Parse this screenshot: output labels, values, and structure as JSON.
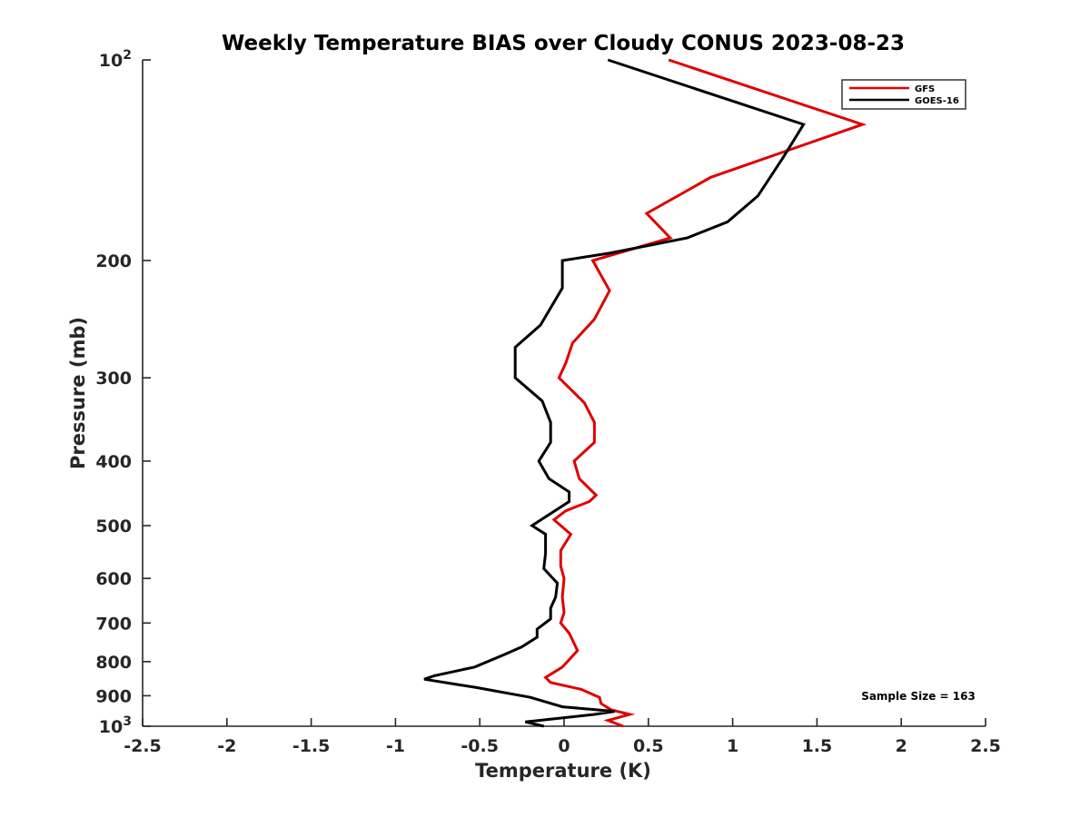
{
  "chart_data": {
    "type": "line",
    "title": "Weekly Temperature BIAS over Cloudy CONUS 2023-08-23",
    "xlabel": "Temperature (K)",
    "ylabel": "Pressure (mb)",
    "xlim": [
      -2.5,
      2.5
    ],
    "ylim": [
      100,
      1000
    ],
    "y_scale": "log",
    "y_reversed": true,
    "x_ticks": [
      "-2.5",
      "-2",
      "-1.5",
      "-1",
      "-0.5",
      "0",
      "0.5",
      "1",
      "1.5",
      "2",
      "2.5"
    ],
    "x_tick_values": [
      -2.5,
      -2,
      -1.5,
      -1,
      -0.5,
      0,
      0.5,
      1,
      1.5,
      2,
      2.5
    ],
    "y_ticks": [
      {
        "value": 100,
        "base": "10",
        "exp": "2"
      },
      {
        "value": 200,
        "label": "200"
      },
      {
        "value": 300,
        "label": "300"
      },
      {
        "value": 400,
        "label": "400"
      },
      {
        "value": 500,
        "label": "500"
      },
      {
        "value": 600,
        "label": "600"
      },
      {
        "value": 700,
        "label": "700"
      },
      {
        "value": 800,
        "label": "800"
      },
      {
        "value": 900,
        "label": "900"
      },
      {
        "value": 1000,
        "base": "10",
        "exp": "3"
      }
    ],
    "grid": false,
    "legend_position": "top-right",
    "annotation": "Sample Size = 163",
    "series": [
      {
        "name": "GFS",
        "color": "#e00000",
        "points": [
          [
            0.62,
            100
          ],
          [
            1.77,
            125
          ],
          [
            0.87,
            150
          ],
          [
            0.49,
            170
          ],
          [
            0.63,
            185
          ],
          [
            0.17,
            200
          ],
          [
            0.27,
            222
          ],
          [
            0.18,
            245
          ],
          [
            0.05,
            266
          ],
          [
            0.01,
            285
          ],
          [
            -0.03,
            300
          ],
          [
            0.12,
            327
          ],
          [
            0.18,
            350
          ],
          [
            0.18,
            375
          ],
          [
            0.06,
            400
          ],
          [
            0.09,
            425
          ],
          [
            0.19,
            450
          ],
          [
            0.15,
            460
          ],
          [
            0.01,
            475
          ],
          [
            -0.06,
            490
          ],
          [
            0.04,
            515
          ],
          [
            -0.02,
            545
          ],
          [
            -0.02,
            575
          ],
          [
            0.0,
            600
          ],
          [
            -0.01,
            640
          ],
          [
            0.0,
            675
          ],
          [
            -0.02,
            700
          ],
          [
            0.03,
            725
          ],
          [
            0.08,
            770
          ],
          [
            -0.01,
            815
          ],
          [
            -0.11,
            845
          ],
          [
            -0.08,
            860
          ],
          [
            0.1,
            880
          ],
          [
            0.21,
            905
          ],
          [
            0.22,
            925
          ],
          [
            0.28,
            945
          ],
          [
            0.39,
            960
          ],
          [
            0.26,
            980
          ],
          [
            0.35,
            1000
          ]
        ]
      },
      {
        "name": "GOES-16",
        "color": "#000000",
        "points": [
          [
            0.26,
            100
          ],
          [
            1.42,
            125
          ],
          [
            1.3,
            140
          ],
          [
            1.15,
            160
          ],
          [
            0.97,
            175
          ],
          [
            0.73,
            185
          ],
          [
            0.27,
            195
          ],
          [
            -0.01,
            200
          ],
          [
            -0.01,
            220
          ],
          [
            -0.14,
            250
          ],
          [
            -0.29,
            270
          ],
          [
            -0.29,
            300
          ],
          [
            -0.13,
            325
          ],
          [
            -0.08,
            350
          ],
          [
            -0.08,
            375
          ],
          [
            -0.15,
            400
          ],
          [
            -0.09,
            425
          ],
          [
            0.03,
            445
          ],
          [
            0.03,
            460
          ],
          [
            -0.19,
            500
          ],
          [
            -0.11,
            515
          ],
          [
            -0.11,
            550
          ],
          [
            -0.12,
            580
          ],
          [
            -0.04,
            610
          ],
          [
            -0.05,
            640
          ],
          [
            -0.08,
            665
          ],
          [
            -0.08,
            690
          ],
          [
            -0.16,
            715
          ],
          [
            -0.16,
            735
          ],
          [
            -0.25,
            760
          ],
          [
            -0.35,
            780
          ],
          [
            -0.53,
            815
          ],
          [
            -0.77,
            840
          ],
          [
            -0.83,
            850
          ],
          [
            -0.52,
            875
          ],
          [
            -0.2,
            905
          ],
          [
            -0.01,
            935
          ],
          [
            0.3,
            950
          ],
          [
            0.18,
            960
          ],
          [
            -0.23,
            985
          ],
          [
            -0.12,
            1000
          ]
        ]
      }
    ]
  }
}
